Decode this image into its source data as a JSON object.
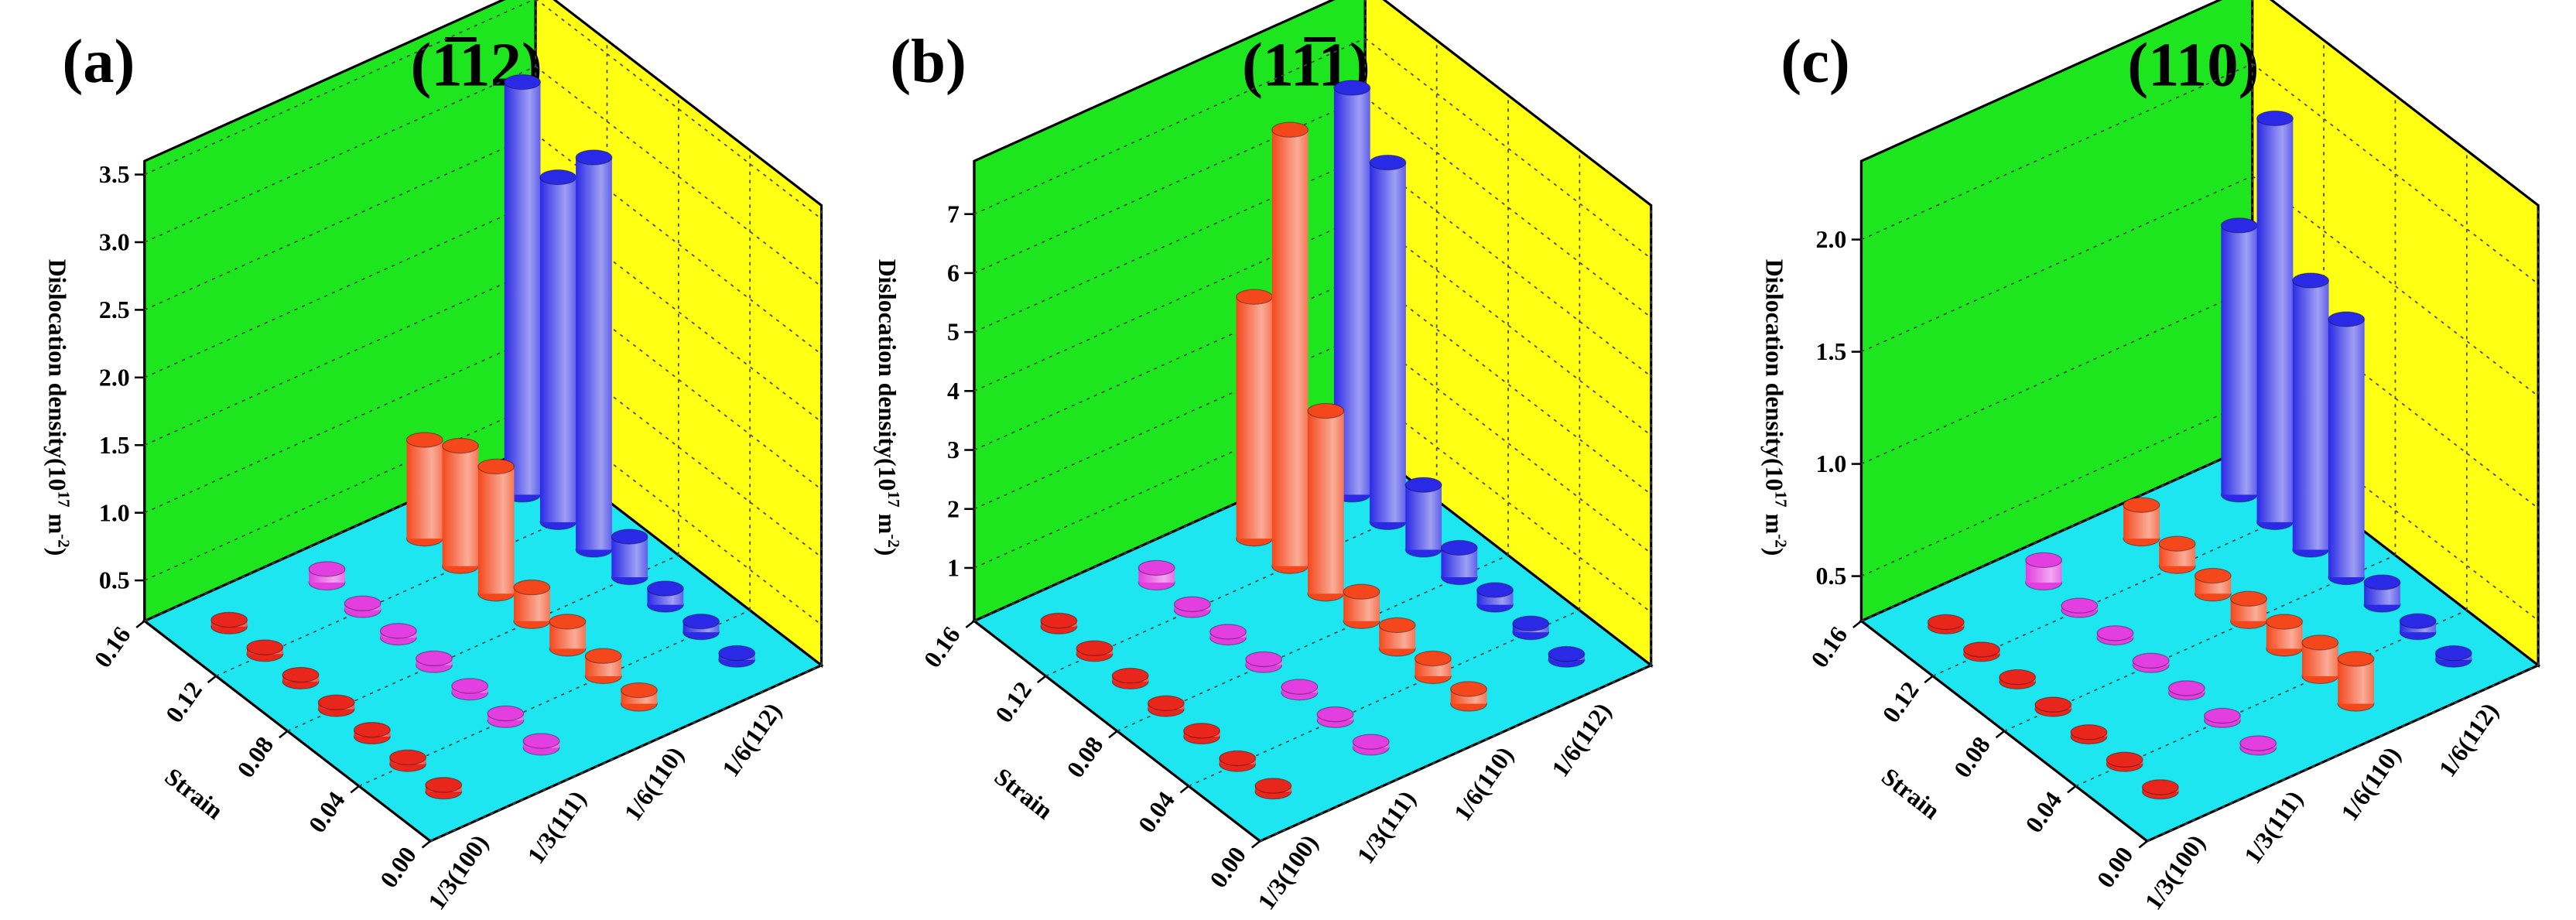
{
  "chart_data": [
    {
      "type": "bar3d",
      "label": "(a)",
      "title": "(1̅12)",
      "ylabel": [
        "Dislocation density(10",
        "17",
        " m",
        "-2",
        ")"
      ],
      "xlabel": "Strain",
      "categories": [
        "1/3(100)",
        "1/3(111)",
        "1/6(110)",
        "1/6(112)"
      ],
      "x": [
        0.02,
        0.04,
        0.06,
        0.08,
        0.1,
        0.12,
        0.14
      ],
      "xlim": [
        0,
        0.16
      ],
      "xticks": [
        {
          "value": 0,
          "label": "0.00"
        },
        0.04,
        0.08,
        0.12,
        0.16
      ],
      "zlim": [
        0.2,
        3.6
      ],
      "zticks": [
        0.5,
        {
          "value": 1,
          "label": "1.0"
        },
        1.5,
        {
          "value": 2,
          "label": "2.0"
        },
        2.5,
        {
          "value": 3,
          "label": "3.0"
        },
        3.5
      ],
      "grid": true,
      "series": [
        {
          "name": "1/3(100)",
          "color": "#e8261c",
          "values": [
            0.25,
            0.25,
            0.25,
            0.25,
            0.25,
            0.25,
            0.25
          ]
        },
        {
          "name": "1/3(111)",
          "color": "#e23ee0",
          "values": [
            0.25,
            0.25,
            0.25,
            0.25,
            0.25,
            0.25,
            0.3
          ]
        },
        {
          "name": "1/6(110)",
          "color": "#f4481c",
          "values": [
            0.3,
            0.35,
            0.4,
            0.45,
            1.14,
            1.09,
            0.93
          ]
        },
        {
          "name": "1/6(112)",
          "color": "#2a2ae6",
          "values": [
            0.25,
            0.28,
            0.32,
            0.5,
            3.1,
            2.75,
            3.25
          ]
        }
      ]
    },
    {
      "type": "bar3d",
      "label": "(b)",
      "title": "(11̅1)",
      "ylabel": [
        "Dislocation density(10",
        "17",
        " m",
        "-2",
        ")"
      ],
      "xlabel": "Strain",
      "categories": [
        "1/3(100)",
        "1/3(111)",
        "1/6(110)",
        "1/6(112)"
      ],
      "x": [
        0.02,
        0.04,
        0.06,
        0.08,
        0.1,
        0.12,
        0.14
      ],
      "xlim": [
        0,
        0.16
      ],
      "xticks": [
        {
          "value": 0,
          "label": "0.00"
        },
        0.04,
        0.08,
        0.12,
        0.16
      ],
      "zlim": [
        0.1,
        7.9
      ],
      "zticks": [
        1,
        2,
        3,
        4,
        5,
        6,
        7
      ],
      "grid": true,
      "series": [
        {
          "name": "1/3(100)",
          "color": "#e8261c",
          "values": [
            0.2,
            0.2,
            0.2,
            0.2,
            0.2,
            0.2,
            0.2
          ]
        },
        {
          "name": "1/3(111)",
          "color": "#e23ee0",
          "values": [
            0.2,
            0.2,
            0.2,
            0.2,
            0.2,
            0.2,
            0.35
          ]
        },
        {
          "name": "1/6(110)",
          "color": "#f4481c",
          "values": [
            0.35,
            0.4,
            0.5,
            0.6,
            3.2,
            7.5,
            4.2
          ]
        },
        {
          "name": "1/6(112)",
          "color": "#2a2ae6",
          "values": [
            0.2,
            0.25,
            0.35,
            0.6,
            1.2,
            6.2,
            7.0
          ]
        }
      ]
    },
    {
      "type": "bar3d",
      "label": "(c)",
      "title": "(110)",
      "ylabel": [
        "Dislocation density(10",
        "17",
        " m",
        "-2",
        ")"
      ],
      "xlabel": "Strain",
      "categories": [
        "1/3(100)",
        "1/3(111)",
        "1/6(110)",
        "1/6(112)"
      ],
      "x": [
        0.02,
        0.04,
        0.06,
        0.08,
        0.1,
        0.12,
        0.14
      ],
      "xlim": [
        0,
        0.16
      ],
      "xticks": [
        {
          "value": 0,
          "label": "0.00"
        },
        0.04,
        0.08,
        0.12,
        0.16
      ],
      "zlim": [
        0.3,
        2.35
      ],
      "zticks": [
        0.5,
        {
          "value": 1,
          "label": "1.0"
        },
        1.5,
        {
          "value": 2,
          "label": "2.0"
        }
      ],
      "grid": true,
      "series": [
        {
          "name": "1/3(100)",
          "color": "#e8261c",
          "values": [
            0.32,
            0.32,
            0.32,
            0.32,
            0.32,
            0.32,
            0.32
          ]
        },
        {
          "name": "1/3(111)",
          "color": "#e23ee0",
          "values": [
            0.32,
            0.32,
            0.32,
            0.32,
            0.32,
            0.32,
            0.4
          ]
        },
        {
          "name": "1/6(110)",
          "color": "#f4481c",
          "values": [
            0.5,
            0.45,
            0.42,
            0.4,
            0.38,
            0.4,
            0.45
          ]
        },
        {
          "name": "1/6(112)",
          "color": "#2a2ae6",
          "values": [
            0.33,
            0.35,
            0.4,
            1.45,
            1.5,
            2.1,
            1.5
          ]
        }
      ]
    }
  ]
}
